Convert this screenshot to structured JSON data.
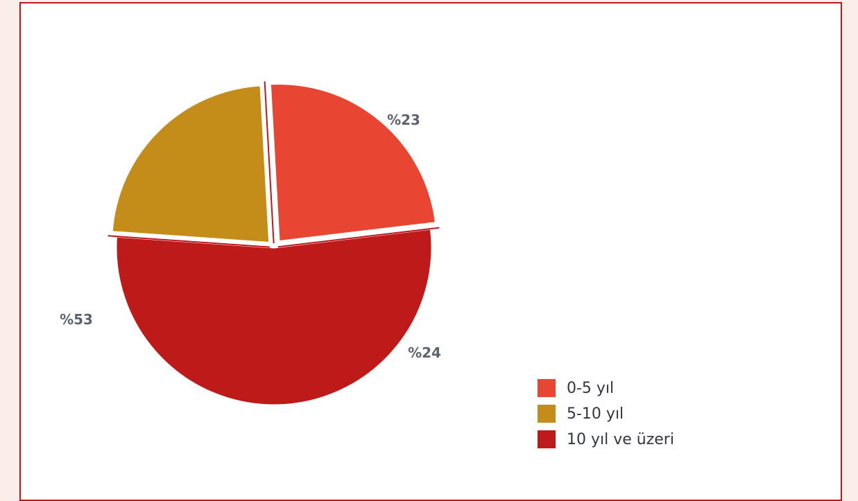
{
  "chart_data": {
    "type": "pie",
    "slices": [
      {
        "name": "0-5 yıl",
        "value": 24,
        "label": "%24",
        "color": "#e84533"
      },
      {
        "name": "5-10 yıl",
        "value": 23,
        "label": "%23",
        "color": "#c48c18"
      },
      {
        "name": "10 yıl ve üzeri",
        "value": 53,
        "label": "%53",
        "color": "#be1a1a"
      }
    ],
    "legend_position": "bottom-right",
    "exploded": true
  },
  "colors": {
    "frame_border": "#c0161a",
    "page_background": "#fbeee8",
    "label_text": "#5a6470"
  }
}
